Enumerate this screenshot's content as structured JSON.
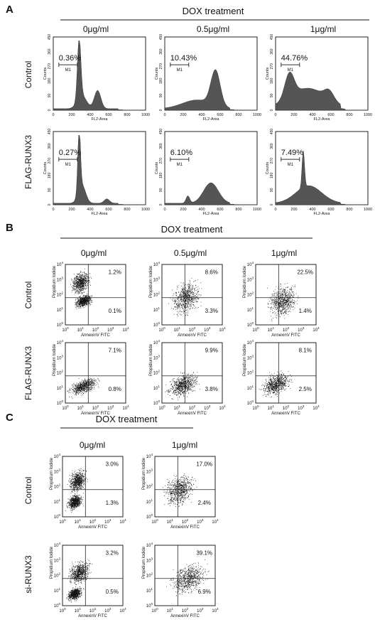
{
  "panels": [
    {
      "label": "A",
      "treatment": "DOX treatment",
      "columns": [
        "0μg/ml",
        "0.5μg/ml",
        "1μg/ml"
      ],
      "rows": [
        "Control",
        "FLAG-RUNX3"
      ],
      "x_axis": "FL2-Area",
      "y_axis": "Counts",
      "gate": "M1",
      "x_ticks": [
        "0",
        "200",
        "400",
        "600",
        "800",
        "1000"
      ],
      "y_ticks": [
        "0",
        "90",
        "180",
        "270",
        "360",
        "450"
      ],
      "plots": [
        [
          "0.36%",
          "10.43%",
          "44.76%"
        ],
        [
          "0.27%",
          "6.10%",
          "7.49%"
        ]
      ]
    },
    {
      "label": "B",
      "treatment": "DOX treatment",
      "columns": [
        "0μg/ml",
        "0.5μg/ml",
        "1μg/ml"
      ],
      "rows": [
        "Control",
        "FLAG-RUNX3"
      ],
      "x_axis": "AnnexinV FITC",
      "y_axis": "Propidium Iodide",
      "tick_base": "10",
      "tick_exponents": [
        "0",
        "1",
        "2",
        "3",
        "4"
      ],
      "plots": [
        [
          {
            "upper": "1.2%",
            "lower": "0.1%"
          },
          {
            "upper": "8.6%",
            "lower": "3.3%"
          },
          {
            "upper": "22.5%",
            "lower": "1.4%"
          }
        ],
        [
          {
            "upper": "7.1%",
            "lower": "0.8%"
          },
          {
            "upper": "9.9%",
            "lower": "3.8%"
          },
          {
            "upper": "8.1%",
            "lower": "2.5%"
          }
        ]
      ]
    },
    {
      "label": "C",
      "treatment": "DOX treatment",
      "columns": [
        "0μg/ml",
        "1μg/ml"
      ],
      "rows": [
        "Control",
        "si-RUNX3"
      ],
      "x_axis": "AnnexinV FITC",
      "y_axis": "Propidium Iodide",
      "tick_base": "10",
      "tick_exponents": [
        "0",
        "1",
        "2",
        "3",
        "4"
      ],
      "plots": [
        [
          {
            "upper": "3.0%",
            "lower": "1.3%"
          },
          {
            "upper": "17.0%",
            "lower": "2.4%"
          }
        ],
        [
          {
            "upper": "3.2%",
            "lower": "0.5%"
          },
          {
            "upper": "39.1%",
            "lower": "6.9%"
          }
        ]
      ]
    }
  ]
}
